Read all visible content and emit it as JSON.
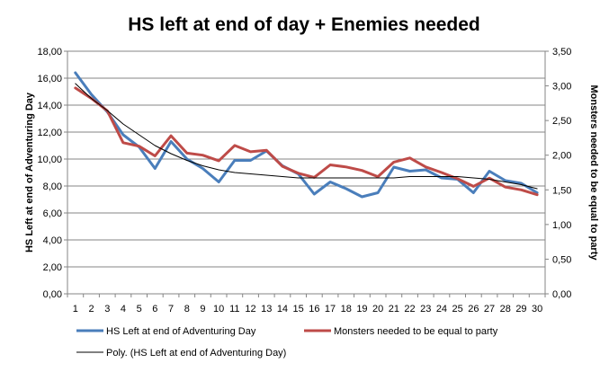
{
  "chart_data": {
    "type": "line",
    "title": "HS left at end of day + Enemies needed",
    "ylabel": "HS Left at end of Adventuring Day",
    "y2label": "Monsters needed to be equal to party",
    "x": [
      1,
      2,
      3,
      4,
      5,
      6,
      7,
      8,
      9,
      10,
      11,
      12,
      13,
      14,
      15,
      16,
      17,
      18,
      19,
      20,
      21,
      22,
      23,
      24,
      25,
      26,
      27,
      28,
      29,
      30
    ],
    "xticks": [
      "1",
      "2",
      "3",
      "4",
      "5",
      "6",
      "7",
      "8",
      "9",
      "10",
      "11",
      "12",
      "13",
      "14",
      "15",
      "16",
      "17",
      "18",
      "19",
      "20",
      "21",
      "22",
      "23",
      "24",
      "25",
      "26",
      "27",
      "28",
      "29",
      "30"
    ],
    "ylim": [
      0,
      18
    ],
    "yticks": [
      "0,00",
      "2,00",
      "4,00",
      "6,00",
      "8,00",
      "10,00",
      "12,00",
      "14,00",
      "16,00",
      "18,00"
    ],
    "y2lim": [
      0,
      3.5
    ],
    "y2ticks": [
      "0,00",
      "0,50",
      "1,00",
      "1,50",
      "2,00",
      "2,50",
      "3,00",
      "3,50"
    ],
    "grid": "horizontal",
    "legend_position": "bottom",
    "series": [
      {
        "name": "HS Left at end of Adventuring Day",
        "axis": "left",
        "color": "#4a7ebb",
        "values": [
          16.4,
          14.8,
          13.5,
          11.8,
          10.9,
          9.3,
          11.3,
          10.0,
          9.3,
          8.3,
          9.9,
          9.9,
          10.6,
          9.5,
          8.9,
          7.4,
          8.3,
          7.8,
          7.2,
          7.5,
          9.4,
          9.1,
          9.2,
          8.6,
          8.5,
          7.5,
          9.1,
          8.4,
          8.2,
          7.5
        ]
      },
      {
        "name": "Monsters needed to be equal to party",
        "axis": "right",
        "color": "#be4b48",
        "values": [
          2.97,
          2.82,
          2.64,
          2.18,
          2.13,
          1.99,
          2.28,
          2.03,
          2.0,
          1.92,
          2.14,
          2.05,
          2.07,
          1.84,
          1.74,
          1.68,
          1.86,
          1.83,
          1.78,
          1.69,
          1.9,
          1.96,
          1.83,
          1.75,
          1.66,
          1.55,
          1.67,
          1.54,
          1.5,
          1.43
        ]
      },
      {
        "name": "Poly. (HS Left at end of Adventuring Day)",
        "axis": "left",
        "color": "#000000",
        "trendline": true,
        "values": [
          15.6,
          14.5,
          13.6,
          12.6,
          11.8,
          11.0,
          10.4,
          9.9,
          9.5,
          9.2,
          9.0,
          8.9,
          8.8,
          8.7,
          8.6,
          8.6,
          8.6,
          8.6,
          8.6,
          8.6,
          8.6,
          8.7,
          8.7,
          8.7,
          8.7,
          8.6,
          8.5,
          8.3,
          8.1,
          7.8
        ]
      }
    ]
  }
}
